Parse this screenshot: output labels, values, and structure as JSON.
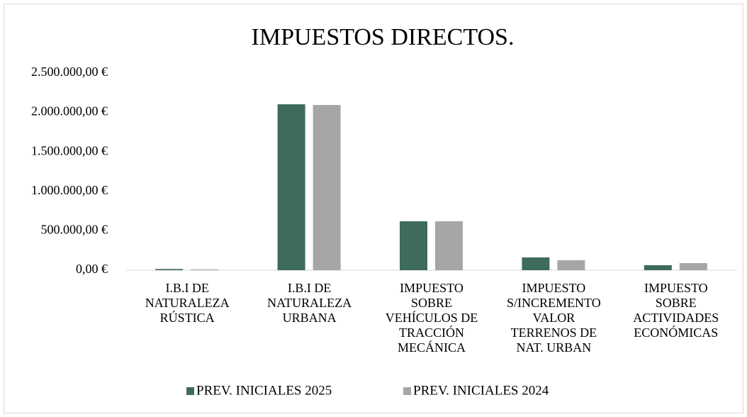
{
  "chart_data": {
    "type": "bar",
    "title": "IMPUESTOS DIRECTOS.",
    "categories": [
      "I.B.I DE\nNATURALEZA\nRÚSTICA",
      "I.B.I DE\nNATURALEZA\nURBANA",
      "IMPUESTO\nSOBRE\nVEHÍCULOS DE\nTRACCIÓN\nMECÁNICA",
      "IMPUESTO\nS/INCREMENTO\nVALOR\nTERRENOS DE\nNAT. URBAN",
      "IMPUESTO\nSOBRE\nACTIVIDADES\nECONÓMICAS"
    ],
    "series": [
      {
        "name": "PREV. INICIALES 2025",
        "color": "#3e6b5d",
        "values": [
          15000,
          2104000,
          620000,
          162000,
          63000
        ]
      },
      {
        "name": "PREV. INICIALES 2024",
        "color": "#a6a6a6",
        "values": [
          10000,
          2095000,
          620000,
          126000,
          90000
        ]
      }
    ],
    "ylim": [
      0,
      2500000
    ],
    "yticks": [
      {
        "value": 0,
        "label": "0,00 €"
      },
      {
        "value": 500000,
        "label": "500.000,00 €"
      },
      {
        "value": 1000000,
        "label": "1.000.000,00 €"
      },
      {
        "value": 1500000,
        "label": "1.500.000,00 €"
      },
      {
        "value": 2000000,
        "label": "2.000.000,00 €"
      },
      {
        "value": 2500000,
        "label": "2.500.000,00 €"
      }
    ],
    "grid": false,
    "legend": "bottom"
  }
}
